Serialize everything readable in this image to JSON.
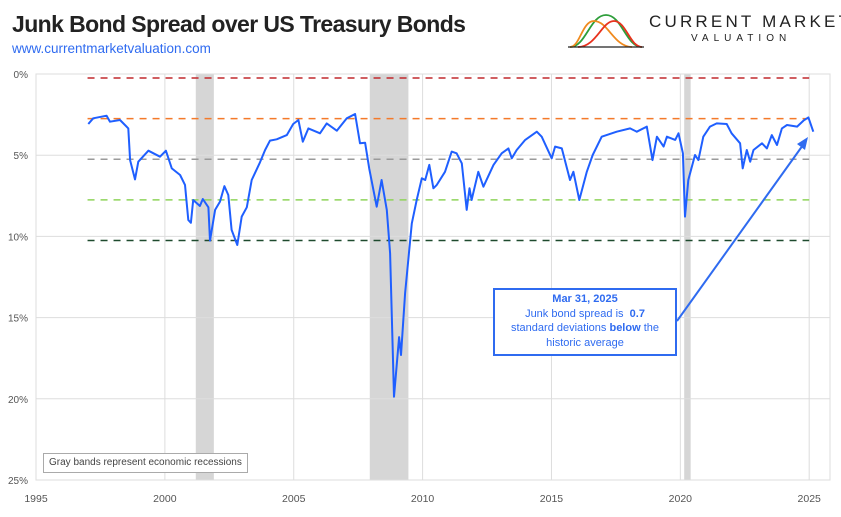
{
  "header": {
    "title": "Junk Bond Spread over US Treasury Bonds",
    "url": "www.currentmarketvaluation.com"
  },
  "logo": {
    "line1": "CURRENT MARKET",
    "line2": "VALUATION",
    "colors": [
      "#e8321e",
      "#f08a1e",
      "#2e9e3a"
    ]
  },
  "legend_note": "Gray bands represent economic recessions",
  "annotation": {
    "date": "Mar 31, 2025",
    "line1_prefix": "Junk bond spread is",
    "value": "0.7",
    "line2_prefix": "standard deviations",
    "direction": "below",
    "line2_suffix": "the",
    "line3": "historic average",
    "color": "#2f6bf0"
  },
  "chart_data": {
    "type": "line",
    "title": "Junk Bond Spread over US Treasury Bonds",
    "xlim": [
      1995,
      2025.5
    ],
    "ylim": [
      0,
      25
    ],
    "y_inverted": true,
    "x_ticks": [
      "1995",
      "2000",
      "2005",
      "2010",
      "2015",
      "2020",
      "2025"
    ],
    "y_ticks": [
      "0%",
      "5%",
      "10%",
      "15%",
      "20%",
      "25%"
    ],
    "grid": true,
    "series": [
      {
        "color": "#1f5fff",
        "points": [
          [
            1997.03,
            3.08
          ],
          [
            1997.22,
            2.73
          ],
          [
            1997.74,
            2.57
          ],
          [
            1997.87,
            2.94
          ],
          [
            1998.26,
            2.83
          ],
          [
            1998.58,
            3.35
          ],
          [
            1998.65,
            5.3
          ],
          [
            1998.84,
            6.49
          ],
          [
            1998.97,
            5.4
          ],
          [
            1999.36,
            4.72
          ],
          [
            1999.81,
            5.09
          ],
          [
            2000.04,
            4.72
          ],
          [
            2000.27,
            5.81
          ],
          [
            2000.59,
            6.22
          ],
          [
            2000.78,
            6.83
          ],
          [
            2000.91,
            8.99
          ],
          [
            2001.01,
            9.16
          ],
          [
            2001.1,
            7.76
          ],
          [
            2001.36,
            8.13
          ],
          [
            2001.47,
            7.7
          ],
          [
            2001.69,
            8.21
          ],
          [
            2001.75,
            10.26
          ],
          [
            2001.95,
            8.37
          ],
          [
            2002.14,
            7.86
          ],
          [
            2002.31,
            6.9
          ],
          [
            2002.46,
            7.45
          ],
          [
            2002.59,
            9.6
          ],
          [
            2002.81,
            10.53
          ],
          [
            2002.98,
            8.78
          ],
          [
            2003.18,
            8.21
          ],
          [
            2003.37,
            6.53
          ],
          [
            2003.69,
            5.44
          ],
          [
            2003.89,
            4.68
          ],
          [
            2004.08,
            4.1
          ],
          [
            2004.34,
            4.02
          ],
          [
            2004.73,
            3.76
          ],
          [
            2004.98,
            3.08
          ],
          [
            2005.18,
            2.83
          ],
          [
            2005.35,
            4.17
          ],
          [
            2005.57,
            3.35
          ],
          [
            2006.02,
            3.65
          ],
          [
            2006.28,
            3.04
          ],
          [
            2006.67,
            3.49
          ],
          [
            2007.06,
            2.73
          ],
          [
            2007.38,
            2.46
          ],
          [
            2007.57,
            4.27
          ],
          [
            2007.77,
            4.23
          ],
          [
            2007.93,
            5.81
          ],
          [
            2008.22,
            8.17
          ],
          [
            2008.41,
            6.53
          ],
          [
            2008.61,
            8.37
          ],
          [
            2008.74,
            11.04
          ],
          [
            2008.89,
            19.87
          ],
          [
            2009.09,
            16.2
          ],
          [
            2009.16,
            17.3
          ],
          [
            2009.32,
            13.5
          ],
          [
            2009.58,
            9.2
          ],
          [
            2009.77,
            7.76
          ],
          [
            2009.97,
            6.42
          ],
          [
            2010.1,
            6.53
          ],
          [
            2010.26,
            5.6
          ],
          [
            2010.42,
            7.04
          ],
          [
            2010.55,
            6.83
          ],
          [
            2010.87,
            6.02
          ],
          [
            2011.13,
            4.78
          ],
          [
            2011.32,
            4.88
          ],
          [
            2011.52,
            5.5
          ],
          [
            2011.71,
            8.37
          ],
          [
            2011.82,
            7.04
          ],
          [
            2011.9,
            7.76
          ],
          [
            2012.16,
            6.02
          ],
          [
            2012.36,
            6.94
          ],
          [
            2012.75,
            5.6
          ],
          [
            2013.07,
            4.88
          ],
          [
            2013.33,
            4.58
          ],
          [
            2013.46,
            5.19
          ],
          [
            2013.65,
            4.68
          ],
          [
            2013.98,
            4.06
          ],
          [
            2014.43,
            3.55
          ],
          [
            2014.62,
            3.86
          ],
          [
            2015.01,
            5.19
          ],
          [
            2015.14,
            4.47
          ],
          [
            2015.4,
            4.58
          ],
          [
            2015.72,
            6.53
          ],
          [
            2015.85,
            6.02
          ],
          [
            2016.08,
            7.76
          ],
          [
            2016.37,
            6.02
          ],
          [
            2016.6,
            4.99
          ],
          [
            2016.95,
            3.86
          ],
          [
            2017.14,
            3.76
          ],
          [
            2017.53,
            3.55
          ],
          [
            2018.05,
            3.35
          ],
          [
            2018.31,
            3.55
          ],
          [
            2018.7,
            3.24
          ],
          [
            2018.92,
            5.3
          ],
          [
            2019.09,
            3.86
          ],
          [
            2019.35,
            4.47
          ],
          [
            2019.48,
            3.86
          ],
          [
            2019.8,
            4.06
          ],
          [
            2019.93,
            3.65
          ],
          [
            2020.1,
            4.88
          ],
          [
            2020.18,
            8.78
          ],
          [
            2020.31,
            6.53
          ],
          [
            2020.57,
            4.99
          ],
          [
            2020.7,
            5.3
          ],
          [
            2020.89,
            3.86
          ],
          [
            2021.15,
            3.24
          ],
          [
            2021.41,
            3.04
          ],
          [
            2021.8,
            3.08
          ],
          [
            2021.99,
            3.65
          ],
          [
            2022.32,
            4.27
          ],
          [
            2022.42,
            5.81
          ],
          [
            2022.58,
            4.68
          ],
          [
            2022.71,
            5.4
          ],
          [
            2022.84,
            4.68
          ],
          [
            2023.17,
            4.27
          ],
          [
            2023.36,
            4.58
          ],
          [
            2023.55,
            3.76
          ],
          [
            2023.75,
            4.37
          ],
          [
            2023.94,
            3.35
          ],
          [
            2024.14,
            3.14
          ],
          [
            2024.53,
            3.24
          ],
          [
            2024.78,
            2.87
          ],
          [
            2024.97,
            2.67
          ],
          [
            2025.16,
            3.55
          ]
        ]
      }
    ],
    "reference_lines": [
      {
        "value": 0.25,
        "color": "#c0282d"
      },
      {
        "value": 2.75,
        "color": "#f47a2a"
      },
      {
        "value": 5.25,
        "color": "#9a9a9a"
      },
      {
        "value": 7.75,
        "color": "#8fd45a"
      },
      {
        "value": 10.25,
        "color": "#1e4a2e"
      }
    ],
    "recessions": [
      [
        2001.2,
        2001.9
      ],
      [
        2007.95,
        2009.45
      ],
      [
        2020.15,
        2020.4
      ]
    ],
    "recession_color": "#d6d6d6"
  }
}
